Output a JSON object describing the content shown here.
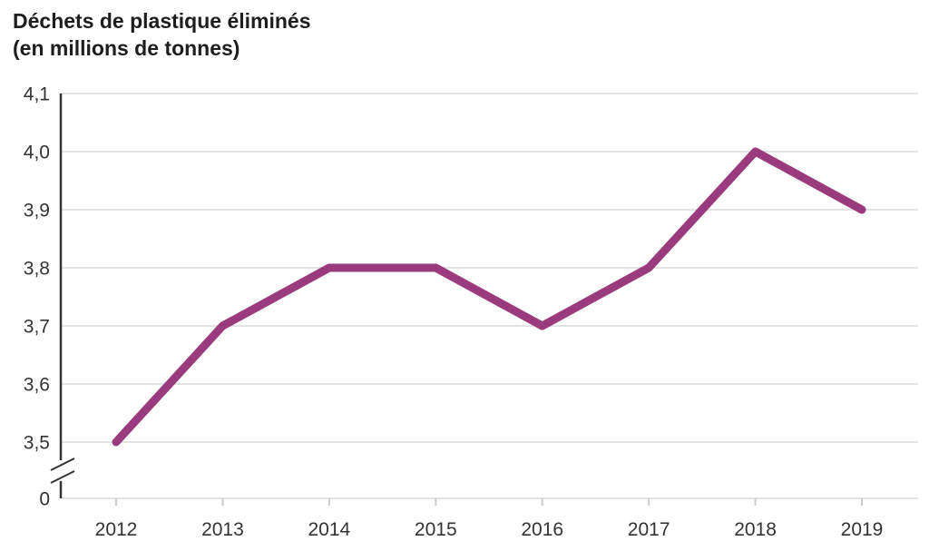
{
  "chart_data": {
    "type": "line",
    "title": "Déchets de plastique éliminés",
    "subtitle": "(en millions de tonnes)",
    "categories": [
      "2012",
      "2013",
      "2014",
      "2015",
      "2016",
      "2017",
      "2018",
      "2019"
    ],
    "series": [
      {
        "name": "Déchets de plastique éliminés (en millions de tonnes)",
        "values": [
          3.5,
          3.7,
          3.8,
          3.8,
          3.7,
          3.8,
          4.0,
          3.9
        ]
      }
    ],
    "xlabel": "",
    "ylabel": "",
    "ylim": [
      3.5,
      4.1
    ],
    "y_ticks": [
      {
        "value": 4.1,
        "label": "4,1"
      },
      {
        "value": 4.0,
        "label": "4,0"
      },
      {
        "value": 3.9,
        "label": "3,9"
      },
      {
        "value": 3.8,
        "label": "3,8"
      },
      {
        "value": 3.7,
        "label": "3,7"
      },
      {
        "value": 3.6,
        "label": "3,6"
      },
      {
        "value": 3.5,
        "label": "3,5"
      },
      {
        "value": 0,
        "label": "0"
      }
    ],
    "y_axis_break": true,
    "grid": true,
    "legend_position": "none",
    "colors": {
      "line": "#993b7c",
      "grid": "#e3e3e3",
      "axis": "#333333",
      "tick": "#cccccc",
      "title": "#1e1e1e",
      "label": "#333333"
    }
  }
}
